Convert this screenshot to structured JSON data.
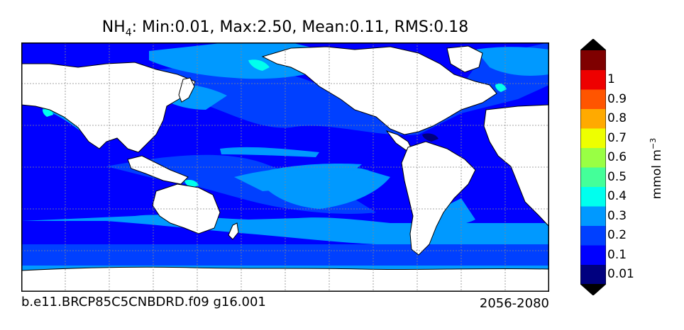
{
  "title": {
    "species": "NH",
    "subscript": "4",
    "stats": ": Min:0.01, Max:2.50, Mean:0.11, RMS:0.18"
  },
  "footer": {
    "case_name": "b.e11.BRCP85C5CNBDRD.f09 g16.001",
    "period": "2056-2080"
  },
  "colorbar": {
    "unit_base": "mmol m",
    "unit_exp": "−3",
    "levels": [
      {
        "label": "0.01",
        "color": "#00007f"
      },
      {
        "label": "0.1",
        "color": "#0000ff"
      },
      {
        "label": "0.2",
        "color": "#0040ff"
      },
      {
        "label": "0.3",
        "color": "#0099ff"
      },
      {
        "label": "0.4",
        "color": "#00ffee"
      },
      {
        "label": "0.5",
        "color": "#44ff99"
      },
      {
        "label": "0.6",
        "color": "#99ff44"
      },
      {
        "label": "0.7",
        "color": "#eeff00"
      },
      {
        "label": "0.8",
        "color": "#ffaa00"
      },
      {
        "label": "0.9",
        "color": "#ff5500"
      },
      {
        "label": "1",
        "color": "#ee0000"
      }
    ],
    "under_color": "#000000",
    "over_color": "#000000",
    "top_color": "#7f0000"
  },
  "map_colors": {
    "land": "#ffffff",
    "ocean_base": "#0000ff",
    "ocean_level2": "#0040ff",
    "ocean_level3": "#0099ff",
    "ocean_level4": "#00ffee",
    "ocean_low": "#00007f"
  }
}
